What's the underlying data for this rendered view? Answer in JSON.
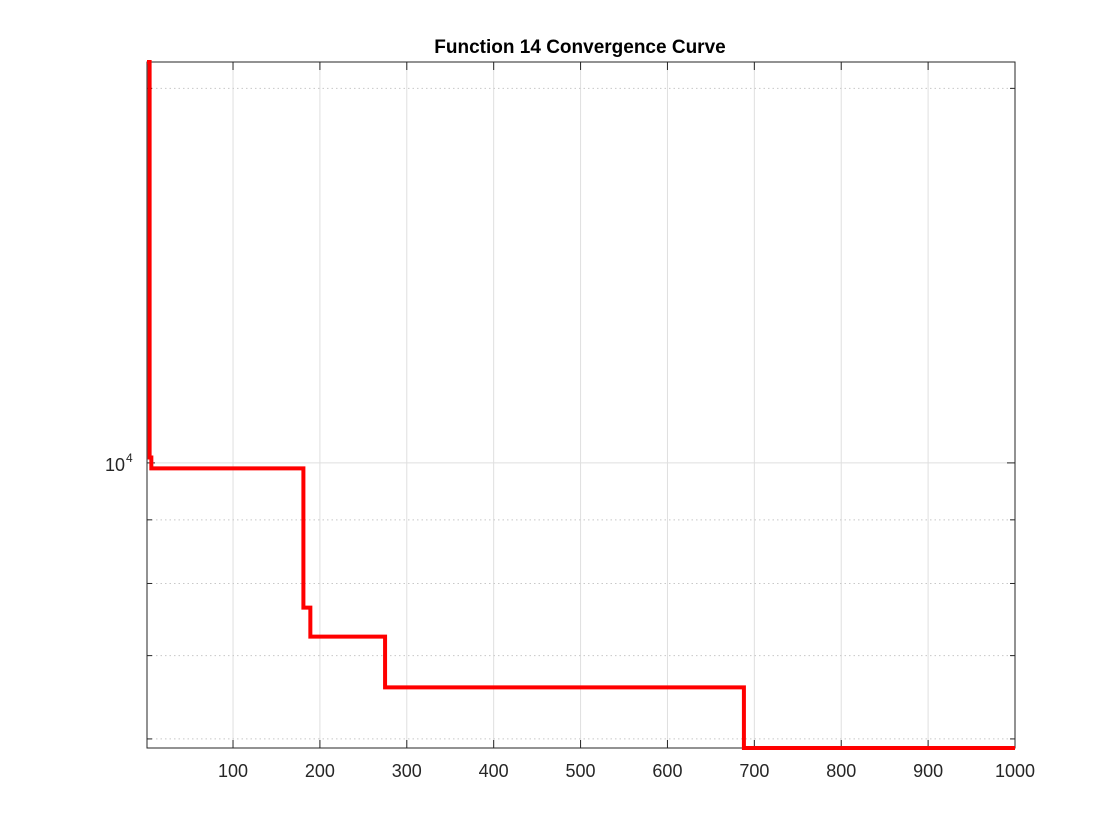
{
  "chart_data": {
    "type": "line",
    "title": "Function 14 Convergence Curve",
    "xlabel": "",
    "ylabel": "",
    "xlim": [
      1,
      1000
    ],
    "ylim": [
      5900,
      21000
    ],
    "yscale": "log",
    "grid": true,
    "x_ticks": [
      100,
      200,
      300,
      400,
      500,
      600,
      700,
      800,
      900,
      1000
    ],
    "x_tick_labels": [
      "100",
      "200",
      "300",
      "400",
      "500",
      "600",
      "700",
      "800",
      "900",
      "1000"
    ],
    "y_ticks_labeled": [
      {
        "value": 10000,
        "base": "10",
        "exp": "4"
      }
    ],
    "series": [
      {
        "color": "#ff0000",
        "x": [
          1,
          4,
          4,
          6,
          6,
          181,
          181,
          189,
          189,
          275,
          275,
          688,
          688,
          1000
        ],
        "y": [
          21000,
          21000,
          10100,
          10100,
          9900,
          9900,
          7650,
          7650,
          7250,
          7250,
          6600,
          6600,
          5900,
          5900
        ]
      }
    ]
  }
}
